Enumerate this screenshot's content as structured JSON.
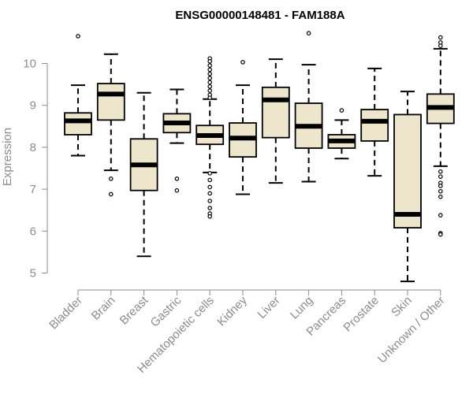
{
  "chart_data": {
    "type": "box",
    "title": "ENSG00000148481 - FAM188A",
    "xlabel": "",
    "ylabel": "Expression",
    "ylim": [
      4.8,
      10.8
    ],
    "yticks": [
      5,
      6,
      7,
      8,
      9,
      10
    ],
    "grid": false,
    "legend": "none",
    "colors": {
      "box_fill": "#ede6cc",
      "box_stroke": "#000000",
      "axis": "#8c8c8c",
      "title": "#000000"
    },
    "categories": [
      "Bladder",
      "Brain",
      "Breast",
      "Gastric",
      "Hematopoietic cells",
      "Kidney",
      "Liver",
      "Lung",
      "Pancreas",
      "Prostate",
      "Skin",
      "Unknown / Other"
    ],
    "boxes": [
      {
        "category": "Bladder",
        "whisker_low": 7.8,
        "q1": 8.3,
        "median": 8.63,
        "q3": 8.82,
        "whisker_high": 9.48,
        "outliers": [
          10.65
        ]
      },
      {
        "category": "Brain",
        "whisker_low": 7.45,
        "q1": 8.65,
        "median": 9.27,
        "q3": 9.52,
        "whisker_high": 10.22,
        "outliers": [
          7.25,
          6.88
        ]
      },
      {
        "category": "Breast",
        "whisker_low": 5.4,
        "q1": 6.97,
        "median": 7.58,
        "q3": 8.2,
        "whisker_high": 9.3,
        "outliers": []
      },
      {
        "category": "Gastric",
        "whisker_low": 8.1,
        "q1": 8.35,
        "median": 8.58,
        "q3": 8.8,
        "whisker_high": 9.38,
        "outliers": [
          7.25,
          6.97
        ]
      },
      {
        "category": "Hematopoietic cells",
        "whisker_low": 7.4,
        "q1": 8.07,
        "median": 8.28,
        "q3": 8.52,
        "whisker_high": 9.15,
        "outliers": [
          10.12,
          10.05,
          9.95,
          9.85,
          9.75,
          9.65,
          9.55,
          9.45,
          9.35,
          9.25,
          9.18,
          7.38,
          7.22,
          7.05,
          6.9,
          6.72,
          6.55,
          6.42,
          6.35
        ]
      },
      {
        "category": "Kidney",
        "whisker_low": 6.88,
        "q1": 7.77,
        "median": 8.22,
        "q3": 8.58,
        "whisker_high": 9.48,
        "outliers": [
          10.03
        ]
      },
      {
        "category": "Liver",
        "whisker_low": 7.15,
        "q1": 8.23,
        "median": 9.13,
        "q3": 9.43,
        "whisker_high": 10.1,
        "outliers": []
      },
      {
        "category": "Lung",
        "whisker_low": 7.18,
        "q1": 7.98,
        "median": 8.5,
        "q3": 9.05,
        "whisker_high": 9.97,
        "outliers": [
          10.72
        ]
      },
      {
        "category": "Pancreas",
        "whisker_low": 7.73,
        "q1": 7.98,
        "median": 8.15,
        "q3": 8.3,
        "whisker_high": 8.65,
        "outliers": [
          8.88
        ]
      },
      {
        "category": "Prostate",
        "whisker_low": 7.32,
        "q1": 8.15,
        "median": 8.62,
        "q3": 8.9,
        "whisker_high": 9.88,
        "outliers": []
      },
      {
        "category": "Skin",
        "whisker_low": 4.8,
        "q1": 6.08,
        "median": 6.4,
        "q3": 8.78,
        "whisker_high": 9.33,
        "outliers": []
      },
      {
        "category": "Unknown / Other",
        "whisker_low": 7.55,
        "q1": 8.57,
        "median": 8.95,
        "q3": 9.27,
        "whisker_high": 10.35,
        "outliers": [
          10.62,
          10.5,
          10.42,
          7.42,
          7.3,
          7.15,
          7.08,
          6.95,
          6.82,
          6.38,
          5.95,
          5.92
        ]
      }
    ]
  }
}
